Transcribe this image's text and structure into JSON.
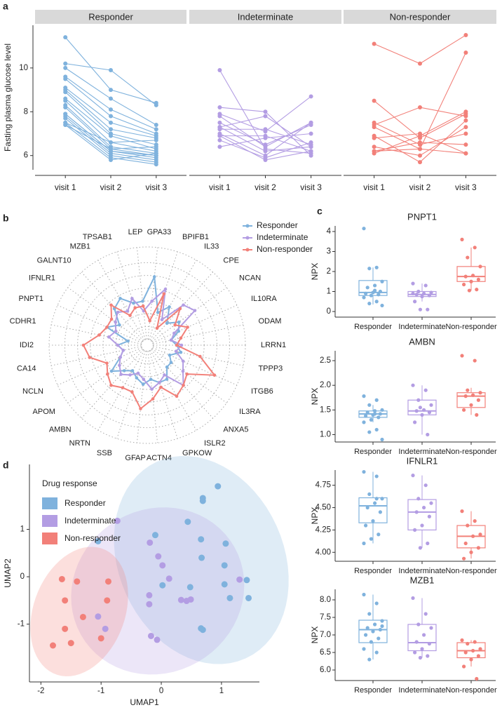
{
  "chart_data": [
    {
      "type": "line",
      "panel": "a",
      "ylabel": "Fasting plasma glucose level",
      "categories": [
        "visit 1",
        "visit 2",
        "visit 3"
      ],
      "ylim": [
        5.35,
        11.95
      ],
      "yticks": [
        6,
        8,
        10
      ],
      "facets": [
        {
          "name": "Responder",
          "color": "#7fb2dd",
          "lines": [
            [
              11.4,
              9.0,
              8.4
            ],
            [
              10.2,
              9.9,
              8.3
            ],
            [
              10.0,
              8.6,
              7.4
            ],
            [
              9.6,
              8.1,
              7.2
            ],
            [
              9.5,
              7.8,
              7.0
            ],
            [
              9.1,
              7.5,
              6.9
            ],
            [
              9.0,
              7.2,
              6.8
            ],
            [
              8.9,
              7.0,
              6.5
            ],
            [
              8.6,
              6.9,
              6.3
            ],
            [
              8.5,
              6.6,
              6.2
            ],
            [
              8.3,
              6.4,
              6.1
            ],
            [
              8.2,
              6.3,
              6.0
            ],
            [
              7.9,
              6.2,
              5.9
            ],
            [
              7.8,
              6.1,
              5.8
            ],
            [
              7.7,
              6.0,
              5.7
            ],
            [
              7.5,
              5.9,
              5.6
            ],
            [
              7.4,
              5.8,
              6.1
            ],
            [
              7.4,
              6.3,
              6.4
            ],
            [
              7.5,
              6.6,
              6.7
            ],
            [
              7.9,
              6.2,
              6.0
            ]
          ]
        },
        {
          "name": "Indeterminate",
          "color": "#b39de3",
          "lines": [
            [
              9.9,
              6.3,
              6.1
            ],
            [
              8.2,
              8.0,
              6.0
            ],
            [
              7.9,
              7.1,
              8.7
            ],
            [
              7.5,
              6.5,
              7.4
            ],
            [
              7.3,
              6.2,
              6.4
            ],
            [
              7.2,
              7.2,
              6.5
            ],
            [
              7.0,
              6.0,
              7.5
            ],
            [
              6.9,
              5.8,
              6.2
            ],
            [
              6.7,
              5.9,
              6.6
            ],
            [
              6.4,
              6.8,
              7.0
            ],
            [
              6.9,
              6.9,
              6.2
            ],
            [
              7.3,
              7.8,
              6.4
            ],
            [
              7.8,
              6.4,
              7.5
            ]
          ]
        },
        {
          "name": "Non-responder",
          "color": "#f28079",
          "lines": [
            [
              11.1,
              10.2,
              11.5
            ],
            [
              8.5,
              6.8,
              7.9
            ],
            [
              7.4,
              8.2,
              7.8
            ],
            [
              7.3,
              6.3,
              10.7
            ],
            [
              6.9,
              5.7,
              7.6
            ],
            [
              6.8,
              7.0,
              6.1
            ],
            [
              6.2,
              6.6,
              6.5
            ],
            [
              6.1,
              6.9,
              8.0
            ],
            [
              7.5,
              6.5,
              7.0
            ],
            [
              6.2,
              6.3,
              6.1
            ],
            [
              6.4,
              6.0,
              7.3
            ]
          ]
        }
      ]
    },
    {
      "type": "radar",
      "panel": "b",
      "axes": [
        "GPA33",
        "BPIFB1",
        "IL33",
        "CPE",
        "NCAN",
        "IL10RA",
        "ODAM",
        "LRRN1",
        "TPPP3",
        "ITGB6",
        "IL3RA",
        "ANXA5",
        "ISLR2",
        "GPKOW",
        "ACTN4",
        "GFAP",
        "SSB",
        "NRTN",
        "AMBN",
        "APOM",
        "NCLN",
        "CA14",
        "IDI2",
        "CDHR1",
        "PNPT1",
        "IFNLR1",
        "GALNT10",
        "MZB1",
        "TPSAB1",
        "LEP"
      ],
      "rlim": [
        0,
        1
      ],
      "rticks": [
        0.06,
        0.19,
        0.32,
        0.45,
        0.58,
        0.71,
        0.84,
        1
      ],
      "legend": "top-right",
      "series": [
        {
          "name": "Responder",
          "color": "#7fb2dd",
          "values": [
            0.7,
            0.35,
            0.45,
            0.3,
            0.4,
            0.35,
            0.25,
            0.3,
            0.35,
            0.25,
            0.3,
            0.3,
            0.4,
            0.4,
            0.35,
            0.4,
            0.35,
            0.3,
            0.35,
            0.45,
            0.3,
            0.25,
            0.3,
            0.2,
            0.45,
            0.35,
            0.5,
            0.55,
            0.45,
            0.45
          ]
        },
        {
          "name": "Indeterminate",
          "color": "#b39de3",
          "values": [
            0.45,
            0.6,
            0.3,
            0.55,
            0.6,
            0.3,
            0.25,
            0.35,
            0.3,
            0.4,
            0.45,
            0.55,
            0.35,
            0.4,
            0.45,
            0.35,
            0.3,
            0.35,
            0.4,
            0.35,
            0.3,
            0.25,
            0.3,
            0.4,
            0.35,
            0.4,
            0.45,
            0.4,
            0.5,
            0.35
          ]
        },
        {
          "name": "Non-responder",
          "color": "#f28079",
          "values": [
            0.25,
            0.55,
            0.2,
            0.5,
            0.35,
            0.45,
            0.35,
            0.3,
            0.55,
            0.75,
            0.5,
            0.55,
            0.6,
            0.45,
            0.55,
            0.65,
            0.5,
            0.5,
            0.55,
            0.5,
            0.45,
            0.6,
            0.65,
            0.5,
            0.45,
            0.45,
            0.55,
            0.35,
            0.4,
            0.4
          ]
        }
      ]
    },
    {
      "type": "box",
      "panel": "c",
      "title": "PNPT1",
      "ylabel": "NPX",
      "categories": [
        "Responder",
        "Indeterminate",
        "Non-responder"
      ],
      "colors": [
        "#7fb2dd",
        "#b39de3",
        "#f28079"
      ],
      "ylim": [
        -0.28,
        4.28
      ],
      "yticks": [
        0,
        1,
        2,
        3,
        4
      ],
      "boxes": [
        {
          "min": 0.35,
          "q1": 0.8,
          "median": 0.95,
          "q3": 1.55,
          "max": 2.2,
          "points": [
            4.15,
            2.2,
            2.15,
            1.5,
            1.3,
            1.2,
            1.0,
            0.95,
            0.9,
            0.85,
            0.8,
            0.7,
            0.5,
            0.4,
            0.3,
            1.05
          ]
        },
        {
          "min": 0.5,
          "q1": 0.75,
          "median": 0.85,
          "q3": 1.0,
          "max": 1.4,
          "points": [
            1.4,
            1.3,
            1.0,
            0.95,
            0.9,
            0.85,
            0.8,
            0.75,
            0.5,
            0.1,
            0.1,
            0.9
          ]
        },
        {
          "min": 1.05,
          "q1": 1.5,
          "median": 1.75,
          "q3": 2.25,
          "max": 3.2,
          "points": [
            3.6,
            3.2,
            2.7,
            2.25,
            1.8,
            1.75,
            1.6,
            1.5,
            1.35,
            1.1,
            1.05
          ]
        }
      ]
    },
    {
      "type": "box",
      "title": "AMBN",
      "ylabel": "NPX",
      "categories": [
        "Responder",
        "Indeterminate",
        "Non-responder"
      ],
      "colors": [
        "#7fb2dd",
        "#b39de3",
        "#f28079"
      ],
      "ylim": [
        0.85,
        2.7
      ],
      "yticks": [
        {
          "value": 1,
          "label": "1.0"
        },
        1.5,
        {
          "value": 2,
          "label": "2.0"
        },
        2.5
      ],
      "boxes": [
        {
          "min": 1.25,
          "q1": 1.35,
          "median": 1.42,
          "q3": 1.48,
          "max": 1.6,
          "points": [
            1.78,
            1.7,
            1.6,
            1.5,
            1.48,
            1.45,
            1.42,
            1.4,
            1.38,
            1.35,
            1.3,
            1.25,
            1.1,
            1.05,
            0.9,
            1.42
          ]
        },
        {
          "min": 1.0,
          "q1": 1.4,
          "median": 1.48,
          "q3": 1.7,
          "max": 2.0,
          "points": [
            2.0,
            1.9,
            1.7,
            1.6,
            1.5,
            1.48,
            1.45,
            1.4,
            1.25,
            1.0,
            1.55
          ]
        },
        {
          "min": 1.4,
          "q1": 1.55,
          "median": 1.78,
          "q3": 1.85,
          "max": 1.95,
          "points": [
            2.6,
            2.5,
            1.9,
            1.85,
            1.8,
            1.78,
            1.7,
            1.6,
            1.5,
            1.4
          ]
        }
      ]
    },
    {
      "type": "box",
      "title": "IFNLR1",
      "ylabel": "NPX",
      "categories": [
        "Responder",
        "Indeterminate",
        "Non-responder"
      ],
      "colors": [
        "#7fb2dd",
        "#b39de3",
        "#f28079"
      ],
      "ylim": [
        3.9,
        4.92
      ],
      "yticks": [
        {
          "value": 4,
          "label": "4.00"
        },
        4.25,
        {
          "value": 4.5,
          "label": "4.50"
        },
        4.75
      ],
      "boxes": [
        {
          "min": 4.1,
          "q1": 4.33,
          "median": 4.52,
          "q3": 4.61,
          "max": 4.9,
          "points": [
            4.9,
            4.85,
            4.65,
            4.6,
            4.55,
            4.5,
            4.45,
            4.35,
            4.3,
            4.2,
            4.15,
            4.1,
            4.6
          ]
        },
        {
          "min": 4.05,
          "q1": 4.25,
          "median": 4.45,
          "q3": 4.59,
          "max": 4.86,
          "points": [
            4.86,
            4.75,
            4.6,
            4.55,
            4.5,
            4.45,
            4.4,
            4.3,
            4.25,
            4.1,
            4.05
          ]
        },
        {
          "min": 3.93,
          "q1": 4.05,
          "median": 4.18,
          "q3": 4.3,
          "max": 4.46,
          "points": [
            4.46,
            4.35,
            4.3,
            4.2,
            4.18,
            4.1,
            4.05,
            4.0,
            3.93
          ]
        }
      ]
    },
    {
      "type": "box",
      "title": "MZB1",
      "ylabel": "NPX",
      "categories": [
        "Responder",
        "Indeterminate",
        "Non-responder"
      ],
      "colors": [
        "#7fb2dd",
        "#b39de3",
        "#f28079"
      ],
      "ylim": [
        5.7,
        8.3
      ],
      "yticks": [
        {
          "value": 6,
          "label": "6.0"
        },
        6.5,
        {
          "value": 7,
          "label": "7.0"
        },
        7.5,
        {
          "value": 8,
          "label": "8.0"
        }
      ],
      "boxes": [
        {
          "min": 6.3,
          "q1": 6.78,
          "median": 7.15,
          "q3": 7.42,
          "max": 8.15,
          "points": [
            8.15,
            7.9,
            7.6,
            7.4,
            7.3,
            7.2,
            7.15,
            7.1,
            7.0,
            6.9,
            6.8,
            6.6,
            6.5,
            6.3,
            7.25
          ]
        },
        {
          "min": 6.35,
          "q1": 6.55,
          "median": 6.78,
          "q3": 7.3,
          "max": 8.05,
          "points": [
            8.05,
            7.6,
            7.3,
            7.2,
            7.0,
            6.8,
            6.75,
            6.6,
            6.5,
            6.4,
            6.35
          ]
        },
        {
          "min": 6.1,
          "q1": 6.35,
          "median": 6.55,
          "q3": 6.78,
          "max": 6.85,
          "points": [
            6.85,
            6.8,
            6.75,
            6.6,
            6.55,
            6.5,
            6.4,
            6.3,
            6.1,
            5.75
          ]
        }
      ]
    },
    {
      "type": "scatter",
      "panel": "d",
      "xlabel": "UMAP1",
      "ylabel": "UMAP2",
      "legend_title": "Drug response",
      "xlim": [
        -2.19,
        1.63
      ],
      "ylim": [
        -2.22,
        2.37
      ],
      "xticks": [
        -2,
        -1,
        0,
        1
      ],
      "yticks": [
        -1,
        0,
        1
      ],
      "series": [
        {
          "name": "Responder",
          "color": "#7fb2dd",
          "x": [
            0.94,
            0.69,
            0.69,
            0.44,
            -0.1,
            0.66,
            1.07,
            0.67,
            1.05,
            1.42,
            1.05,
            1.14,
            1.45,
            0.69,
            0.66,
            0.02,
            -1.05,
            0.48
          ],
          "y": [
            1.91,
            1.66,
            1.6,
            1.16,
            0.88,
            0.79,
            0.7,
            0.4,
            0.24,
            -0.07,
            -0.16,
            -0.45,
            -0.45,
            -1.12,
            -1.09,
            -0.18,
            0.75,
            -0.22
          ]
        },
        {
          "name": "Indeterminate",
          "color": "#b39de3",
          "x": [
            -0.73,
            -0.19,
            -0.05,
            0.02,
            0.13,
            -0.2,
            -0.2,
            -1.05,
            -0.93,
            -0.17,
            -0.07,
            0.42,
            0.49,
            1.3,
            0.33
          ],
          "y": [
            1.18,
            0.72,
            0.43,
            0.24,
            -0.04,
            -0.39,
            -0.58,
            -0.84,
            -1.1,
            -1.25,
            -1.33,
            -0.51,
            -0.48,
            -0.06,
            -0.49
          ]
        },
        {
          "name": "Non-responder",
          "color": "#f28079",
          "x": [
            -1.65,
            -1.4,
            -0.88,
            -1.6,
            -0.9,
            -1.3,
            -1.6,
            -1.8,
            -1.5,
            -1.0
          ],
          "y": [
            -0.05,
            -0.1,
            -0.1,
            -0.5,
            -0.5,
            -0.85,
            -1.1,
            -1.45,
            -1.4,
            -1.3
          ]
        }
      ]
    }
  ]
}
